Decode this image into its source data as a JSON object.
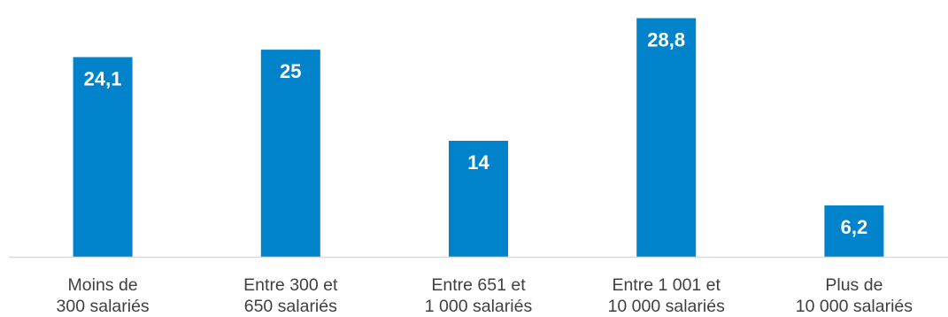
{
  "chart_data": {
    "type": "bar",
    "categories": [
      [
        "Moins de",
        "300 salariés"
      ],
      [
        "Entre 300 et",
        "650 salariés"
      ],
      [
        "Entre 651 et",
        "1 000 salariés"
      ],
      [
        "Entre 1 001 et",
        "10 000 salariés"
      ],
      [
        "Plus de",
        "10 000 salariés"
      ]
    ],
    "values": [
      24.1,
      25,
      14,
      28.8,
      6.2
    ],
    "value_labels": [
      "24,1",
      "25",
      "14",
      "28,8",
      "6,2"
    ],
    "ylim": [
      0,
      29.5
    ],
    "grid": false,
    "legend": "none"
  },
  "colors": {
    "bar": "#0083CA",
    "axis": "#D9D9D9",
    "label": "#404040",
    "value_label": "#FFFFFF"
  }
}
